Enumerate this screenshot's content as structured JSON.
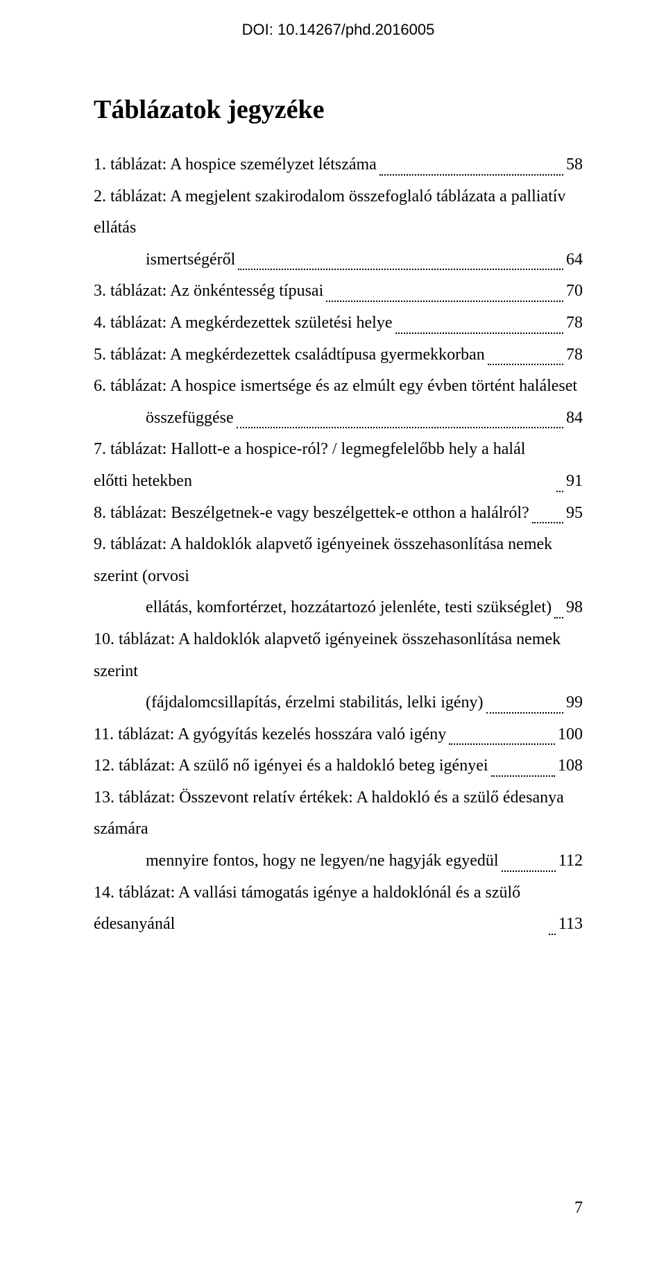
{
  "doi": "DOI: 10.14267/phd.2016005",
  "title": "Táblázatok jegyzéke",
  "page_number": "7",
  "toc": [
    {
      "text": "1. táblázat: A hospice személyzet létszáma",
      "page": "58"
    },
    {
      "text": "2. táblázat: A megjelent szakirodalom összefoglaló táblázata a palliatív ellátás",
      "cont": "ismertségéről",
      "page": "64"
    },
    {
      "text": "3. táblázat: Az önkéntesség típusai",
      "page": "70"
    },
    {
      "text": "4. táblázat: A megkérdezettek születési helye",
      "page": "78"
    },
    {
      "text": "5. táblázat: A megkérdezettek családtípusa gyermekkorban",
      "page": "78"
    },
    {
      "text": "6. táblázat: A hospice ismertsége és az elmúlt egy évben történt haláleset",
      "cont": "összefüggése",
      "page": "84"
    },
    {
      "text": "7. táblázat: Hallott-e a hospice-ról? / legmegfelelőbb hely a halál előtti hetekben",
      "page": "91"
    },
    {
      "text": "8. táblázat: Beszélgetnek-e vagy beszélgettek-e otthon a halálról?",
      "page": "95"
    },
    {
      "text": "9. táblázat: A haldoklók alapvető igényeinek összehasonlítása nemek szerint (orvosi",
      "cont": "ellátás, komfortérzet, hozzátartozó jelenléte, testi szükséglet)",
      "page": "98"
    },
    {
      "text": "10. táblázat: A haldoklók alapvető igényeinek összehasonlítása nemek szerint",
      "cont": "(fájdalomcsillapítás, érzelmi stabilitás, lelki igény)",
      "page": "99"
    },
    {
      "text": "11. táblázat: A gyógyítás kezelés hosszára való igény",
      "page": "100"
    },
    {
      "text": "12. táblázat: A szülő nő igényei és a haldokló beteg igényei",
      "page": "108"
    },
    {
      "text": "13. táblázat: Összevont relatív értékek: A haldokló és a szülő édesanya számára",
      "cont": "mennyire fontos, hogy ne legyen/ne hagyják egyedül",
      "page": "112"
    },
    {
      "text": "14. táblázat: A vallási támogatás igénye a haldoklónál és a szülő édesanyánál",
      "page": "113"
    }
  ]
}
